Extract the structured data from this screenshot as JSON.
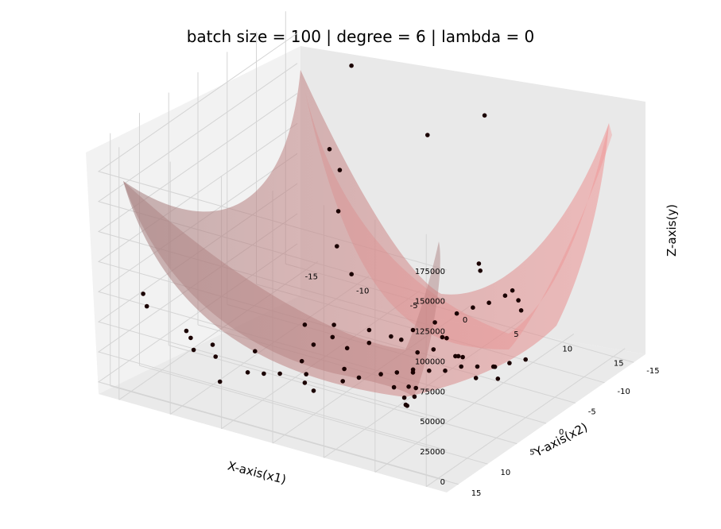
{
  "chart_data": {
    "type": "scatter",
    "title": "batch size = 100 | degree = 6 | lambda = 0",
    "xlabel": "X-axis(x1)",
    "ylabel": "Y-axis(x2)",
    "zlabel": "Z-axis(y)",
    "x_ticks": [
      "-15",
      "-10",
      "-5",
      "0",
      "5",
      "10",
      "15"
    ],
    "y_ticks": [
      "-15",
      "-10",
      "-5",
      "0",
      "5",
      "10",
      "15"
    ],
    "z_ticks": [
      "0",
      "25000",
      "50000",
      "75000",
      "100000",
      "125000",
      "150000",
      "175000"
    ],
    "xlim": [
      -17,
      17
    ],
    "ylim": [
      -17,
      17
    ],
    "zlim": [
      -10000,
      200000
    ],
    "grid": true,
    "surface": {
      "description": "fitted degree-6 polynomial surface",
      "color": "#f08080",
      "alpha": 0.45
    },
    "points": [
      [
        -15.5,
        12,
        60000
      ],
      [
        -14,
        14,
        60000
      ],
      [
        -13,
        9,
        25000
      ],
      [
        -10,
        13,
        30000
      ],
      [
        -9,
        11,
        20000
      ],
      [
        -11,
        8,
        15000
      ],
      [
        -12,
        10,
        25000
      ],
      [
        -8,
        12,
        5000
      ],
      [
        -7,
        9,
        5000
      ],
      [
        -8,
        6,
        10000
      ],
      [
        -6,
        8,
        3000
      ],
      [
        -5,
        7,
        2000
      ],
      [
        -4,
        5,
        8000
      ],
      [
        -3,
        6,
        3000
      ],
      [
        -2,
        8,
        5000
      ],
      [
        -1,
        3,
        2000
      ],
      [
        0,
        5,
        1000
      ],
      [
        1,
        4,
        3000
      ],
      [
        2,
        2,
        1500
      ],
      [
        3,
        1,
        2000
      ],
      [
        4,
        0,
        1000
      ],
      [
        5,
        -1,
        1500
      ],
      [
        6,
        -2,
        500
      ],
      [
        7,
        -3,
        3000
      ],
      [
        8,
        -4,
        2000
      ],
      [
        9,
        -5,
        1000
      ],
      [
        10,
        -6,
        3000
      ],
      [
        11,
        -7,
        5000
      ],
      [
        -2,
        -3,
        1000
      ],
      [
        -1,
        -5,
        2000
      ],
      [
        0,
        -7,
        3000
      ],
      [
        1,
        -9,
        5000
      ],
      [
        2,
        -11,
        8000
      ],
      [
        3,
        -12,
        12000
      ],
      [
        4,
        -13,
        15000
      ],
      [
        5,
        -14,
        20000
      ],
      [
        -5,
        -2,
        2000
      ],
      [
        -6,
        -4,
        3000
      ],
      [
        -3,
        -1,
        1000
      ],
      [
        6,
        3,
        3000
      ],
      [
        7,
        5,
        5000
      ],
      [
        8,
        8,
        10000
      ],
      [
        9,
        10,
        20000
      ],
      [
        10,
        12,
        35000
      ],
      [
        11,
        13,
        50000
      ],
      [
        12,
        14,
        70000
      ],
      [
        13,
        15,
        90000
      ],
      [
        -10,
        -14,
        175000
      ],
      [
        -11,
        -12,
        110000
      ],
      [
        -10,
        -12,
        95000
      ],
      [
        -9,
        -10,
        70000
      ],
      [
        -8,
        -8,
        50000
      ],
      [
        -6,
        -7,
        35000
      ],
      [
        -2,
        -13,
        140000
      ],
      [
        3,
        -14,
        165000
      ],
      [
        4,
        2,
        35000
      ],
      [
        6,
        0,
        25000
      ],
      [
        2,
        4,
        45000
      ],
      [
        12,
        9,
        80000
      ],
      [
        13,
        10,
        85000
      ],
      [
        14,
        6,
        130000
      ],
      [
        15,
        8,
        145000
      ],
      [
        16,
        3,
        100000
      ],
      [
        13,
        5,
        35000
      ],
      [
        14,
        3,
        30000
      ],
      [
        10,
        2,
        35000
      ],
      [
        9,
        1,
        30000
      ],
      [
        12,
        0,
        25000
      ],
      [
        0,
        10,
        10000
      ],
      [
        -4,
        3,
        15000
      ],
      [
        -6,
        1,
        20000
      ],
      [
        8,
        -10,
        45000
      ],
      [
        10,
        -8,
        40000
      ],
      [
        7,
        -2,
        15000
      ],
      [
        5,
        5,
        8000
      ]
    ]
  }
}
